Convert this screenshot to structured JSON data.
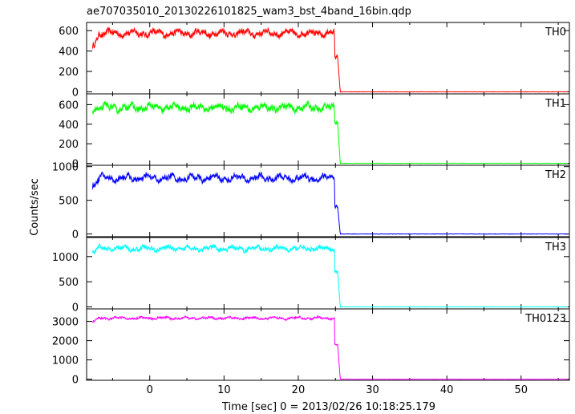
{
  "chart_data": {
    "type": "line",
    "title": "ae707035010_20130226101825_wam3_bst_4band_16bin.qdp",
    "xlabel": "Time [sec] 0 = 2013/02/26 10:18:25.179",
    "ylabel": "Counts/sec",
    "xlim": [
      -8.5,
      56.5
    ],
    "x_ticks": [
      0,
      10,
      20,
      30,
      40,
      50
    ],
    "x_tick_labels": [
      "0",
      "10",
      "20",
      "30",
      "40",
      "50"
    ],
    "shared_x": true,
    "grid": false,
    "drop_time": 25.3,
    "panels": [
      {
        "name": "TH0",
        "color": "#ff0000",
        "ylim": [
          -20,
          680
        ],
        "y_ticks": [
          0,
          200,
          400,
          600
        ],
        "y_tick_labels": [
          "0",
          "200",
          "400",
          "600"
        ],
        "level": 575,
        "start_level": 440,
        "tail_level": 340,
        "noise": 35,
        "err": 28
      },
      {
        "name": "TH1",
        "color": "#00ff00",
        "ylim": [
          -20,
          710
        ],
        "y_ticks": [
          0,
          200,
          400,
          600
        ],
        "y_tick_labels": [
          "0",
          "200",
          "400",
          "600"
        ],
        "level": 570,
        "start_level": 560,
        "tail_level": 420,
        "noise": 40,
        "err": 30
      },
      {
        "name": "TH2",
        "color": "#0000ff",
        "ylim": [
          -40,
          1020
        ],
        "y_ticks": [
          0,
          500,
          1000
        ],
        "y_tick_labels": [
          "0",
          "500",
          "1000"
        ],
        "level": 830,
        "start_level": 720,
        "tail_level": 400,
        "noise": 55,
        "err": 38
      },
      {
        "name": "TH3",
        "color": "#00ffff",
        "ylim": [
          -40,
          1380
        ],
        "y_ticks": [
          0,
          500,
          1000
        ],
        "y_tick_labels": [
          "0",
          "500",
          "1000"
        ],
        "level": 1160,
        "start_level": 1080,
        "tail_level": 700,
        "noise": 55,
        "err": 42
      },
      {
        "name": "TH0123",
        "color": "#ff00ff",
        "ylim": [
          -60,
          3650
        ],
        "y_ticks": [
          0,
          1000,
          2000,
          3000
        ],
        "y_tick_labels": [
          "0",
          "1000",
          "2000",
          "3000"
        ],
        "level": 3170,
        "start_level": 2950,
        "tail_level": 1800,
        "noise": 70,
        "err": 70
      }
    ]
  }
}
